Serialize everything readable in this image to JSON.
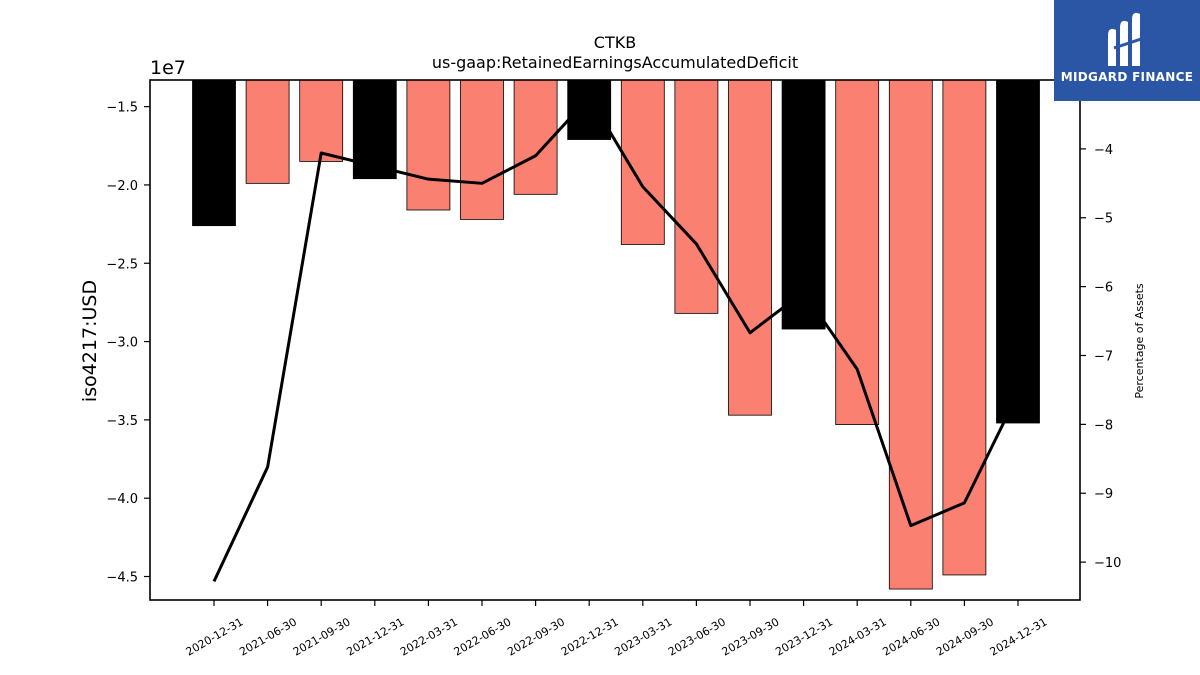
{
  "chart_data": {
    "type": "bar",
    "title": "CTKB",
    "subtitle": "us-gaap:RetainedEarningsAccumulatedDeficit",
    "ylabel": "iso4217:USD",
    "y_offset_label": "1e7",
    "y2label": "Percentage of Assets",
    "categories": [
      "2020-12-31",
      "2021-06-30",
      "2021-09-30",
      "2021-12-31",
      "2022-03-31",
      "2022-06-30",
      "2022-09-30",
      "2022-12-31",
      "2023-03-31",
      "2023-06-30",
      "2023-09-30",
      "2023-12-31",
      "2024-03-31",
      "2024-06-30",
      "2024-09-30",
      "2024-12-31"
    ],
    "series": [
      {
        "values": [
          -22600000,
          -19900000,
          -18500000,
          -19600000,
          -21600000,
          -22200000,
          -20600000,
          -17100000,
          -23800000,
          -28200000,
          -34700000,
          -29200000,
          -35300000,
          -45800000,
          -44900000,
          -35200000
        ],
        "bar_colors": [
          "#000000",
          "#fa8072",
          "#fa8072",
          "#000000",
          "#fa8072",
          "#fa8072",
          "#fa8072",
          "#000000",
          "#fa8072",
          "#fa8072",
          "#fa8072",
          "#000000",
          "#fa8072",
          "#fa8072",
          "#fa8072",
          "#000000"
        ]
      },
      {
        "axis": "right",
        "type": "line",
        "color": "#000000",
        "values": [
          -10.28,
          -8.62,
          -4.06,
          -4.25,
          -4.44,
          -4.5,
          -4.1,
          -3.25,
          -4.55,
          -5.38,
          -6.67,
          -6.08,
          -7.2,
          -9.47,
          -9.14,
          -7.55
        ]
      }
    ],
    "ylim": [
      -46500000,
      -13300000
    ],
    "y2lim": [
      -10.55,
      -3.0
    ],
    "yticks": [
      -15000000,
      -20000000,
      -25000000,
      -30000000,
      -35000000,
      -40000000,
      -45000000
    ],
    "ytick_labels": [
      "−1.5",
      "−2.0",
      "−2.5",
      "−3.0",
      "−3.5",
      "−4.0",
      "−4.5"
    ],
    "y2ticks": [
      -4,
      -5,
      -6,
      -7,
      -8,
      -9,
      -10
    ],
    "y2tick_labels": [
      "−4",
      "−5",
      "−6",
      "−7",
      "−8",
      "−9",
      "−10"
    ],
    "grid": false,
    "legend": "none"
  },
  "logo": {
    "text": "MIDGARD FINANCE",
    "icon": "midgard-m-logo-icon"
  }
}
